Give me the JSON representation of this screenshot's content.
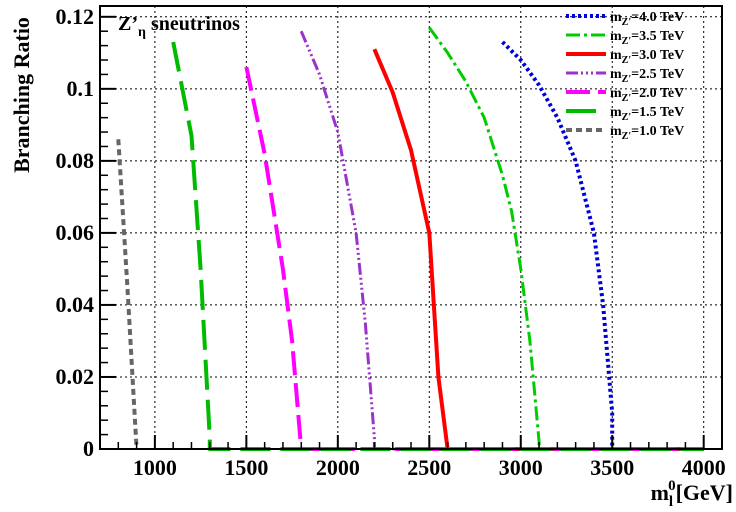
{
  "chart_data": {
    "type": "line",
    "title": "",
    "annotation": {
      "main": "Z’",
      "sub": "η",
      "rest": " sneutrinos"
    },
    "xlabel": {
      "main": "m",
      "sub": "l",
      "sup": "0",
      "rest": "[GeV]"
    },
    "ylabel": "Branching Ratio",
    "xlim": [
      700,
      4100
    ],
    "ylim": [
      0,
      0.123
    ],
    "xticks": [
      1000,
      1500,
      2000,
      2500,
      3000,
      3500,
      4000
    ],
    "xtick_labels": [
      "1000",
      "1500",
      "2000",
      "2500",
      "3000",
      "3500",
      "4000"
    ],
    "yticks": [
      0,
      0.02,
      0.04,
      0.06,
      0.08,
      0.1,
      0.12
    ],
    "ytick_labels": [
      "0",
      "0.02",
      "0.04",
      "0.06",
      "0.08",
      "0.1",
      "0.12"
    ],
    "grid": true,
    "legend_position": "top-right",
    "series": [
      {
        "name": "m_Z'=4.0 TeV",
        "label_main": "m",
        "label_sub": "Z'",
        "label_rest": "=4.0 TeV",
        "color": "#0000dd",
        "dash": "3,3",
        "width": 4,
        "x": [
          2900,
          3000,
          3100,
          3200,
          3300,
          3400,
          3450,
          3500,
          3500,
          3600,
          3700,
          3800,
          3900,
          4000
        ],
        "y": [
          0.113,
          0.108,
          0.101,
          0.092,
          0.08,
          0.06,
          0.04,
          0.01,
          0,
          0,
          0,
          0,
          0,
          0
        ]
      },
      {
        "name": "m_Z'=3.5 TeV",
        "label_main": "m",
        "label_sub": "Z'",
        "label_rest": "=3.5 TeV",
        "color": "#00cc00",
        "dash": "14,4,3,4",
        "width": 3,
        "x": [
          2500,
          2600,
          2700,
          2800,
          2900,
          2950,
          3000,
          3050,
          3100,
          3100,
          3200,
          3300,
          3400,
          3500,
          3600,
          3700,
          3800,
          3900,
          4000
        ],
        "y": [
          0.117,
          0.11,
          0.102,
          0.092,
          0.076,
          0.066,
          0.05,
          0.03,
          0.002,
          0,
          0,
          0,
          0,
          0,
          0,
          0,
          0,
          0,
          0
        ]
      },
      {
        "name": "m_Z'=3.0 TeV",
        "label_main": "m",
        "label_sub": "Z'",
        "label_rest": "=3.0 TeV",
        "color": "#ff0000",
        "dash": "",
        "width": 4,
        "x": [
          2200,
          2300,
          2400,
          2500,
          2550,
          2600,
          2600,
          2700,
          2800,
          2900,
          3000,
          3100,
          3200,
          3300,
          3400,
          3500,
          3600,
          3700,
          3800,
          3900,
          4000
        ],
        "y": [
          0.111,
          0.099,
          0.083,
          0.06,
          0.02,
          0,
          0,
          0,
          0,
          0,
          0,
          0,
          0,
          0,
          0,
          0,
          0,
          0,
          0,
          0,
          0
        ]
      },
      {
        "name": "m_Z'=2.5 TeV",
        "label_main": "m",
        "label_sub": "Z'",
        "label_rest": "=2.5 TeV",
        "color": "#9933cc",
        "dash": "12,3,2,3,2,3,2,3",
        "width": 3,
        "x": [
          1800,
          1900,
          2000,
          2100,
          2150,
          2200,
          2200,
          2300,
          2400,
          2500,
          2600,
          2700,
          2800,
          2900,
          3000,
          3100,
          3200,
          3300,
          3400,
          3500,
          3600,
          3700,
          3800,
          3900,
          4000
        ],
        "y": [
          0.116,
          0.104,
          0.088,
          0.06,
          0.035,
          0.003,
          0,
          0,
          0,
          0,
          0,
          0,
          0,
          0,
          0,
          0,
          0,
          0,
          0,
          0,
          0,
          0,
          0,
          0,
          0
        ]
      },
      {
        "name": "m_Z'=2.0 TeV",
        "label_main": "m",
        "label_sub": "Z'",
        "label_rest": "=2.0 TeV",
        "color": "#ff00ff",
        "dash": "24,8",
        "width": 4,
        "x": [
          1500,
          1600,
          1700,
          1750,
          1800,
          1800,
          1900,
          2000,
          2100,
          2200,
          2300,
          2400,
          2500,
          2600,
          2700,
          2800,
          2900,
          3000,
          3100,
          3200,
          3300,
          3400,
          3500,
          3600,
          3700,
          3800,
          3900,
          4000
        ],
        "y": [
          0.106,
          0.082,
          0.05,
          0.03,
          0,
          0,
          0,
          0,
          0,
          0,
          0,
          0,
          0,
          0,
          0,
          0,
          0,
          0,
          0,
          0,
          0,
          0,
          0,
          0,
          0,
          0,
          0,
          0
        ]
      },
      {
        "name": "m_Z'=1.5 TeV",
        "label_main": "m",
        "label_sub": "Z'",
        "label_rest": "=1.5 TeV",
        "color": "#00bb00",
        "dash": "30,10",
        "width": 4,
        "x": [
          1100,
          1200,
          1250,
          1300,
          1300,
          1400,
          1500,
          1600,
          1700,
          1800,
          1900,
          2000,
          2100,
          2200,
          2300,
          2400,
          2500,
          2600,
          2700,
          2800,
          2900,
          3000,
          3100,
          3200,
          3300,
          3400,
          3500,
          3600,
          3700,
          3800,
          3900,
          4000
        ],
        "y": [
          0.113,
          0.087,
          0.05,
          0.003,
          0,
          0,
          0,
          0,
          0,
          0,
          0,
          0,
          0,
          0,
          0,
          0,
          0,
          0,
          0,
          0,
          0,
          0,
          0,
          0,
          0,
          0,
          0,
          0,
          0,
          0,
          0,
          0
        ]
      },
      {
        "name": "m_Z'=1.0 TeV",
        "label_main": "m",
        "label_sub": "Z'",
        "label_rest": "=1.0 TeV",
        "color": "#666666",
        "dash": "6,4",
        "width": 4,
        "x": [
          800,
          850,
          900
        ],
        "y": [
          0.086,
          0.045,
          0
        ]
      }
    ]
  }
}
